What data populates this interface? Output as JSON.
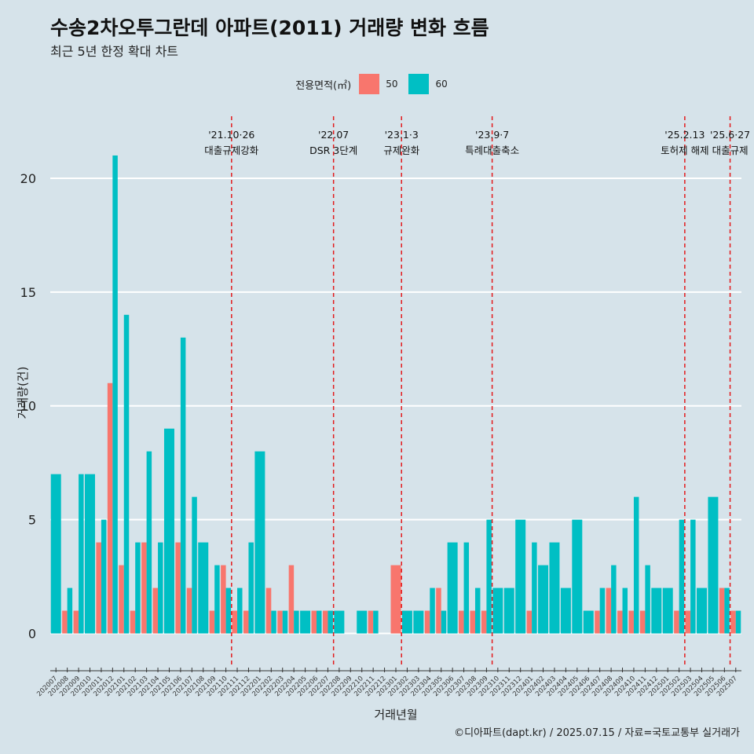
{
  "header": {
    "title": "수송2차오투그란데 아파트(2011) 거래량 변화 흐름",
    "subtitle": "최근 5년 한정 확대 차트"
  },
  "legend": {
    "title": "전용면적(㎡)",
    "items": [
      {
        "label": "50",
        "color": "#f8766d"
      },
      {
        "label": "60",
        "color": "#00bfc4"
      }
    ]
  },
  "caption": "©디아파트(dapt.kr) / 2025.07.15 / 자료=국토교통부 실거래가",
  "chart_data": {
    "type": "bar",
    "xlabel": "거래년월",
    "ylabel": "거래량(건)",
    "ylim": [
      -1.5,
      23
    ],
    "yticks": [
      0,
      5,
      10,
      15,
      20
    ],
    "grid": "horizontal",
    "legend_position": "top",
    "categories": [
      "202007",
      "202008",
      "202009",
      "202010",
      "202011",
      "202012",
      "202101",
      "202102",
      "202103",
      "202104",
      "202105",
      "202106",
      "202107",
      "202108",
      "202109",
      "202110",
      "202111",
      "202112",
      "202201",
      "202202",
      "202203",
      "202204",
      "202205",
      "202206",
      "202207",
      "202208",
      "202209",
      "202210",
      "202211",
      "202212",
      "202301",
      "202302",
      "202303",
      "202304",
      "202305",
      "202306",
      "202307",
      "202308",
      "202309",
      "202310",
      "202311",
      "202312",
      "202401",
      "202402",
      "202403",
      "202404",
      "202405",
      "202406",
      "202407",
      "202408",
      "202409",
      "202410",
      "202411",
      "202412",
      "202501",
      "202502",
      "202503",
      "202504",
      "202505",
      "202506",
      "202507"
    ],
    "series": [
      {
        "name": "50",
        "color": "#f8766d",
        "values": [
          0,
          1,
          1,
          0,
          4,
          11,
          3,
          1,
          4,
          2,
          0,
          4,
          2,
          0,
          1,
          3,
          1,
          1,
          0,
          2,
          1,
          3,
          0,
          1,
          1,
          0,
          0,
          0,
          1,
          0,
          3,
          0,
          0,
          1,
          2,
          0,
          1,
          1,
          1,
          0,
          0,
          0,
          1,
          0,
          0,
          0,
          0,
          0,
          1,
          2,
          1,
          1,
          1,
          0,
          0,
          1,
          1,
          0,
          0,
          2,
          1
        ]
      },
      {
        "name": "60",
        "color": "#00bfc4",
        "values": [
          7,
          2,
          7,
          7,
          5,
          21,
          14,
          4,
          8,
          4,
          9,
          13,
          6,
          4,
          3,
          2,
          2,
          4,
          8,
          1,
          1,
          1,
          1,
          1,
          1,
          1,
          0,
          1,
          1,
          0,
          0,
          1,
          1,
          2,
          1,
          4,
          4,
          2,
          5,
          2,
          2,
          5,
          4,
          3,
          4,
          2,
          5,
          1,
          2,
          3,
          2,
          6,
          3,
          2,
          2,
          5,
          5,
          2,
          6,
          2,
          1
        ]
      }
    ],
    "annotations": [
      {
        "index": 15.5,
        "line1": "'21.10·26",
        "line2": "대출규제강화"
      },
      {
        "index": 24.5,
        "line1": "'22.07",
        "line2": "DSR 3단계"
      },
      {
        "index": 30.5,
        "line1": "'23.1·3",
        "line2": "규제완화"
      },
      {
        "index": 38.5,
        "line1": "'23.9·7",
        "line2": "특례대출축소"
      },
      {
        "index": 55.5,
        "line1": "'25.2.13",
        "line2": "토허제 해제"
      },
      {
        "index": 59.5,
        "line1": "'25.6·27",
        "line2": "대출규제"
      }
    ]
  }
}
